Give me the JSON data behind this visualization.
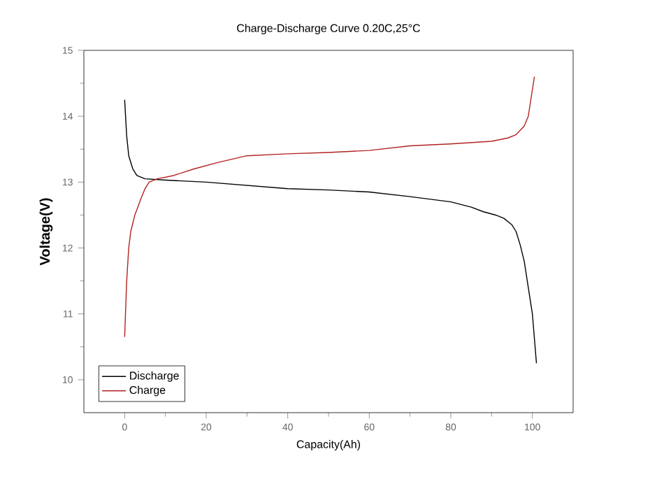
{
  "chart_data": {
    "type": "line",
    "title": "Charge-Discharge Curve  0.20C,25°C",
    "xlabel": "Capacity(Ah)",
    "ylabel": "Voltage(V)",
    "xlim": [
      -10,
      110
    ],
    "ylim": [
      9.5,
      15
    ],
    "xticks": [
      0,
      20,
      40,
      60,
      80,
      100
    ],
    "yticks": [
      10,
      11,
      12,
      13,
      14,
      15
    ],
    "legend": "bottom left",
    "marker": "none",
    "grid": false,
    "series": [
      {
        "name": "Discharge",
        "color": "#000000",
        "x": [
          0,
          0.5,
          1,
          2,
          3,
          5,
          10,
          20,
          30,
          40,
          50,
          60,
          70,
          80,
          85,
          88,
          91,
          93,
          95,
          96,
          97,
          98,
          99,
          100,
          101
        ],
        "values": [
          14.25,
          13.7,
          13.4,
          13.2,
          13.1,
          13.05,
          13.03,
          13.0,
          12.95,
          12.9,
          12.88,
          12.85,
          12.78,
          12.7,
          12.62,
          12.55,
          12.5,
          12.45,
          12.35,
          12.25,
          12.05,
          11.8,
          11.4,
          11.0,
          10.25
        ]
      },
      {
        "name": "Charge",
        "color": "#b22222",
        "x": [
          0,
          0.5,
          1,
          1.5,
          2.5,
          4,
          5,
          6,
          8,
          12,
          17,
          23,
          30,
          40,
          50,
          60,
          70,
          80,
          90,
          94,
          96,
          98,
          99,
          99.5,
          100,
          100.5
        ],
        "values": [
          10.65,
          11.5,
          12.0,
          12.25,
          12.5,
          12.75,
          12.9,
          13.0,
          13.05,
          13.1,
          13.2,
          13.3,
          13.4,
          13.43,
          13.45,
          13.48,
          13.55,
          13.58,
          13.62,
          13.67,
          13.72,
          13.85,
          14.0,
          14.2,
          14.4,
          14.6
        ]
      }
    ]
  }
}
